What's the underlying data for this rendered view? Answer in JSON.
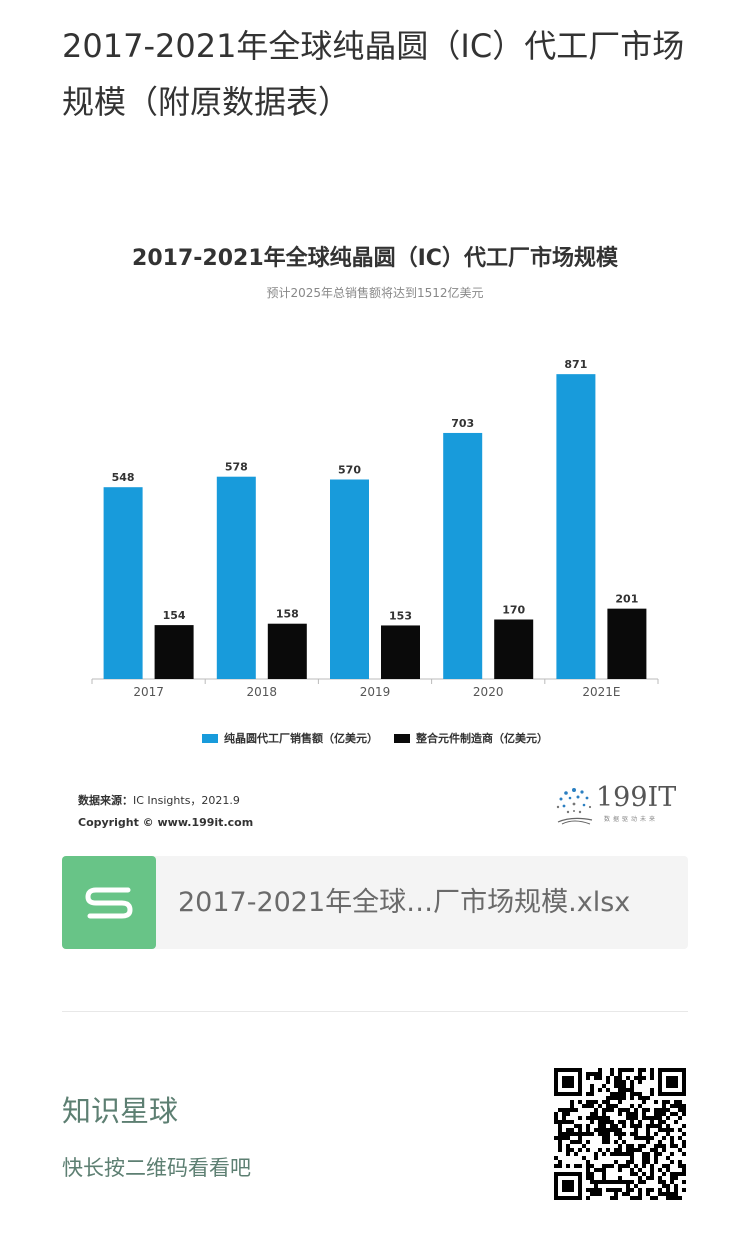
{
  "article": {
    "title": "2017-2021年全球纯晶圆（IC）代工厂市场规模（附原数据表）"
  },
  "chart_data": {
    "type": "bar",
    "title": "2017-2021年全球纯晶圆（IC）代工厂市场规模",
    "subtitle": "预计2025年总销售额将达到1512亿美元",
    "categories": [
      "2017",
      "2018",
      "2019",
      "2020",
      "2021E"
    ],
    "series": [
      {
        "name": "纯晶圆代工厂销售额（亿美元）",
        "color": "#189bdb",
        "values": [
          548,
          578,
          570,
          703,
          871
        ]
      },
      {
        "name": "整合元件制造商（亿美元）",
        "color": "#0a0a0a",
        "values": [
          154,
          158,
          153,
          170,
          201
        ]
      }
    ],
    "ylim": [
      0,
      1000
    ],
    "grid": false,
    "legend_position": "bottom"
  },
  "source": {
    "label": "数据来源：",
    "text": "IC Insights，2021.9",
    "copyright": "Copyright ©  www.199it.com"
  },
  "brand": {
    "name": "199IT",
    "tagline": "数据驱动未来"
  },
  "attachment": {
    "icon": "spreadsheet-icon",
    "filename": "2017-2021年全球…厂市场规模.xlsx"
  },
  "footer": {
    "name": "知识星球",
    "hint": "快长按二维码看看吧"
  }
}
